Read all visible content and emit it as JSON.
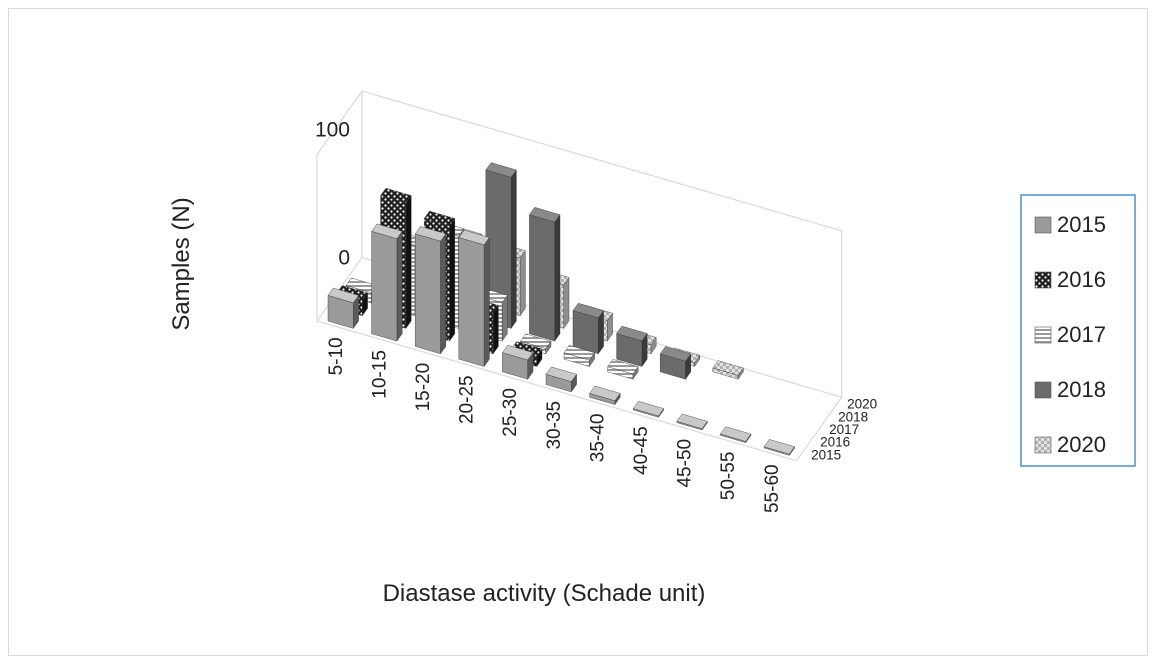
{
  "chart_data": {
    "type": "bar",
    "subtype": "3d-column",
    "title": "",
    "xlabel": "Diastase activity (Schade unit)",
    "ylabel": "Samples (N)",
    "zlabel": "",
    "categories": [
      "5-10",
      "10-15",
      "15-20",
      "20-25",
      "25-30",
      "30-35",
      "35-40",
      "40-45",
      "45-50",
      "50-55",
      "55-60"
    ],
    "depth_labels": [
      "2015",
      "2016",
      "2017",
      "2018",
      "2020"
    ],
    "y_ticks": [
      "0",
      "100"
    ],
    "ylim": [
      0,
      130
    ],
    "grid": false,
    "legend_position": "right",
    "series": [
      {
        "name": "2015",
        "pattern": "light",
        "color": "#9a9a9a",
        "values": [
          20,
          80,
          88,
          95,
          15,
          8,
          3,
          1,
          1,
          1,
          1
        ]
      },
      {
        "name": "2016",
        "pattern": "dots",
        "color": "#2a2a2a",
        "values": [
          12,
          98,
          90,
          32,
          8,
          0,
          0,
          0,
          0,
          0,
          0
        ]
      },
      {
        "name": "2017",
        "pattern": "hlines",
        "color": "#b8b8b8",
        "values": [
          8,
          55,
          72,
          30,
          4,
          5,
          4,
          0,
          0,
          0,
          0
        ]
      },
      {
        "name": "2018",
        "pattern": "dark",
        "color": "#6a6a6a",
        "values": [
          0,
          0,
          0,
          118,
          93,
          28,
          20,
          14,
          0,
          0,
          0
        ]
      },
      {
        "name": "2020",
        "pattern": "checker",
        "color": "#c4c4c4",
        "values": [
          0,
          0,
          48,
          45,
          34,
          16,
          7,
          3,
          3,
          0,
          0
        ]
      }
    ]
  }
}
